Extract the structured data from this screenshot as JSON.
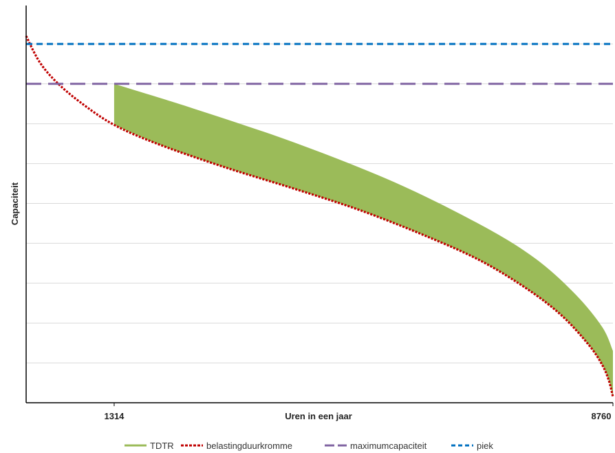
{
  "chart_data": {
    "type": "area",
    "xlabel": "Uren in een jaar",
    "ylabel": "Capaciteit",
    "x_ticks": [
      {
        "value": 1314,
        "label": "1314"
      },
      {
        "value": 8760,
        "label": "8760"
      }
    ],
    "xlim": [
      0,
      8760
    ],
    "ylim": [
      0,
      100
    ],
    "grid": true,
    "grid_lines": [
      10,
      20,
      30,
      40,
      50,
      60,
      70,
      80,
      90
    ],
    "legend_position": "bottom",
    "series": [
      {
        "name": "TDTR",
        "type": "area",
        "color": "#9bbb59",
        "x": [
          1314,
          2500,
          4000,
          5500,
          6800,
          7600,
          8200,
          8600,
          8760
        ],
        "y": [
          80,
          73.8,
          65.3,
          55.3,
          44.5,
          36.2,
          27.2,
          19,
          13
        ]
      },
      {
        "name": "belastingduurkromme",
        "type": "line",
        "style": "dotted",
        "color": "#c00000",
        "x": [
          0,
          200,
          450,
          800,
          1314,
          2000,
          3000,
          4000,
          5000,
          6000,
          6800,
          7500,
          8000,
          8400,
          8600,
          8700,
          8760
        ],
        "y": [
          92,
          85.5,
          80.5,
          75.5,
          69.7,
          64.7,
          58.9,
          53.7,
          48.2,
          41.6,
          35.5,
          28.3,
          21.8,
          14.5,
          9.5,
          5.5,
          1.5
        ]
      },
      {
        "name": "maximumcapaciteit",
        "type": "line",
        "style": "dashed",
        "color": "#8064a2",
        "x": [
          0,
          8760
        ],
        "y": [
          80,
          80
        ]
      },
      {
        "name": "piek",
        "type": "line",
        "style": "dashed",
        "color": "#0070c0",
        "x": [
          0,
          8760
        ],
        "y": [
          90,
          90
        ]
      }
    ]
  }
}
